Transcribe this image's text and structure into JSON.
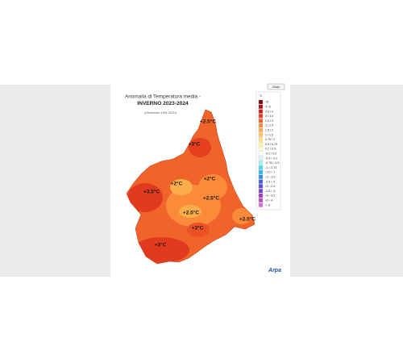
{
  "header": {
    "title_line1": "Anomalia di Temperatura media -",
    "title_line2": "INVERNO 2023-2024",
    "reference": "(riferimento 1991-2020)"
  },
  "legend": {
    "button": "Stato",
    "unit": "°C",
    "items": [
      {
        "label": ">6",
        "color": "#7f0000"
      },
      {
        "label": "4 / 6",
        "color": "#a50f15"
      },
      {
        "label": "3.5 / 4",
        "color": "#cb181d"
      },
      {
        "label": "3 / 3.5",
        "color": "#e8361e"
      },
      {
        "label": "2.5 / 3",
        "color": "#f4602b"
      },
      {
        "label": "2 / 2.5",
        "color": "#fb8a3a"
      },
      {
        "label": "1.5 / 2",
        "color": "#fdae4b"
      },
      {
        "label": "1 / 1.5",
        "color": "#fec65a"
      },
      {
        "label": "0.75 / 1",
        "color": "#fee08b"
      },
      {
        "label": "0.5 / 0.75",
        "color": "#fff2a8"
      },
      {
        "label": "0.2 / 0.5",
        "color": "#ffffcc"
      },
      {
        "label": "-0.2 / 0.2",
        "color": "#ffffff"
      },
      {
        "label": "-0.5 / -0.2",
        "color": "#e0f7fa"
      },
      {
        "label": "-0.75 / -0.5",
        "color": "#a6ecf7"
      },
      {
        "label": "-1 / -0.75",
        "color": "#4fd8f0"
      },
      {
        "label": "-1.5 / -1",
        "color": "#2bb7f0"
      },
      {
        "label": "-2 / -1.5",
        "color": "#2b8cf0"
      },
      {
        "label": "-2.5 / -2",
        "color": "#3b5fe0"
      },
      {
        "label": "-3 / -2.5",
        "color": "#5a48d8"
      },
      {
        "label": "-3.5 / -3",
        "color": "#7a3fd0"
      },
      {
        "label": "-4 / -3.5",
        "color": "#9a3cc8"
      },
      {
        "label": "-6 / -4",
        "color": "#b84ac0"
      },
      {
        "label": "< -6",
        "color": "#d070c8"
      }
    ]
  },
  "map_labels": [
    "+2.5°C",
    "+3°C",
    "+2°C",
    "+2°C",
    "+3.5°C",
    "+2.5°C",
    "+2.5°C",
    "+2.5°C",
    "+3°C",
    "+3°C"
  ],
  "logo": "Arpa"
}
